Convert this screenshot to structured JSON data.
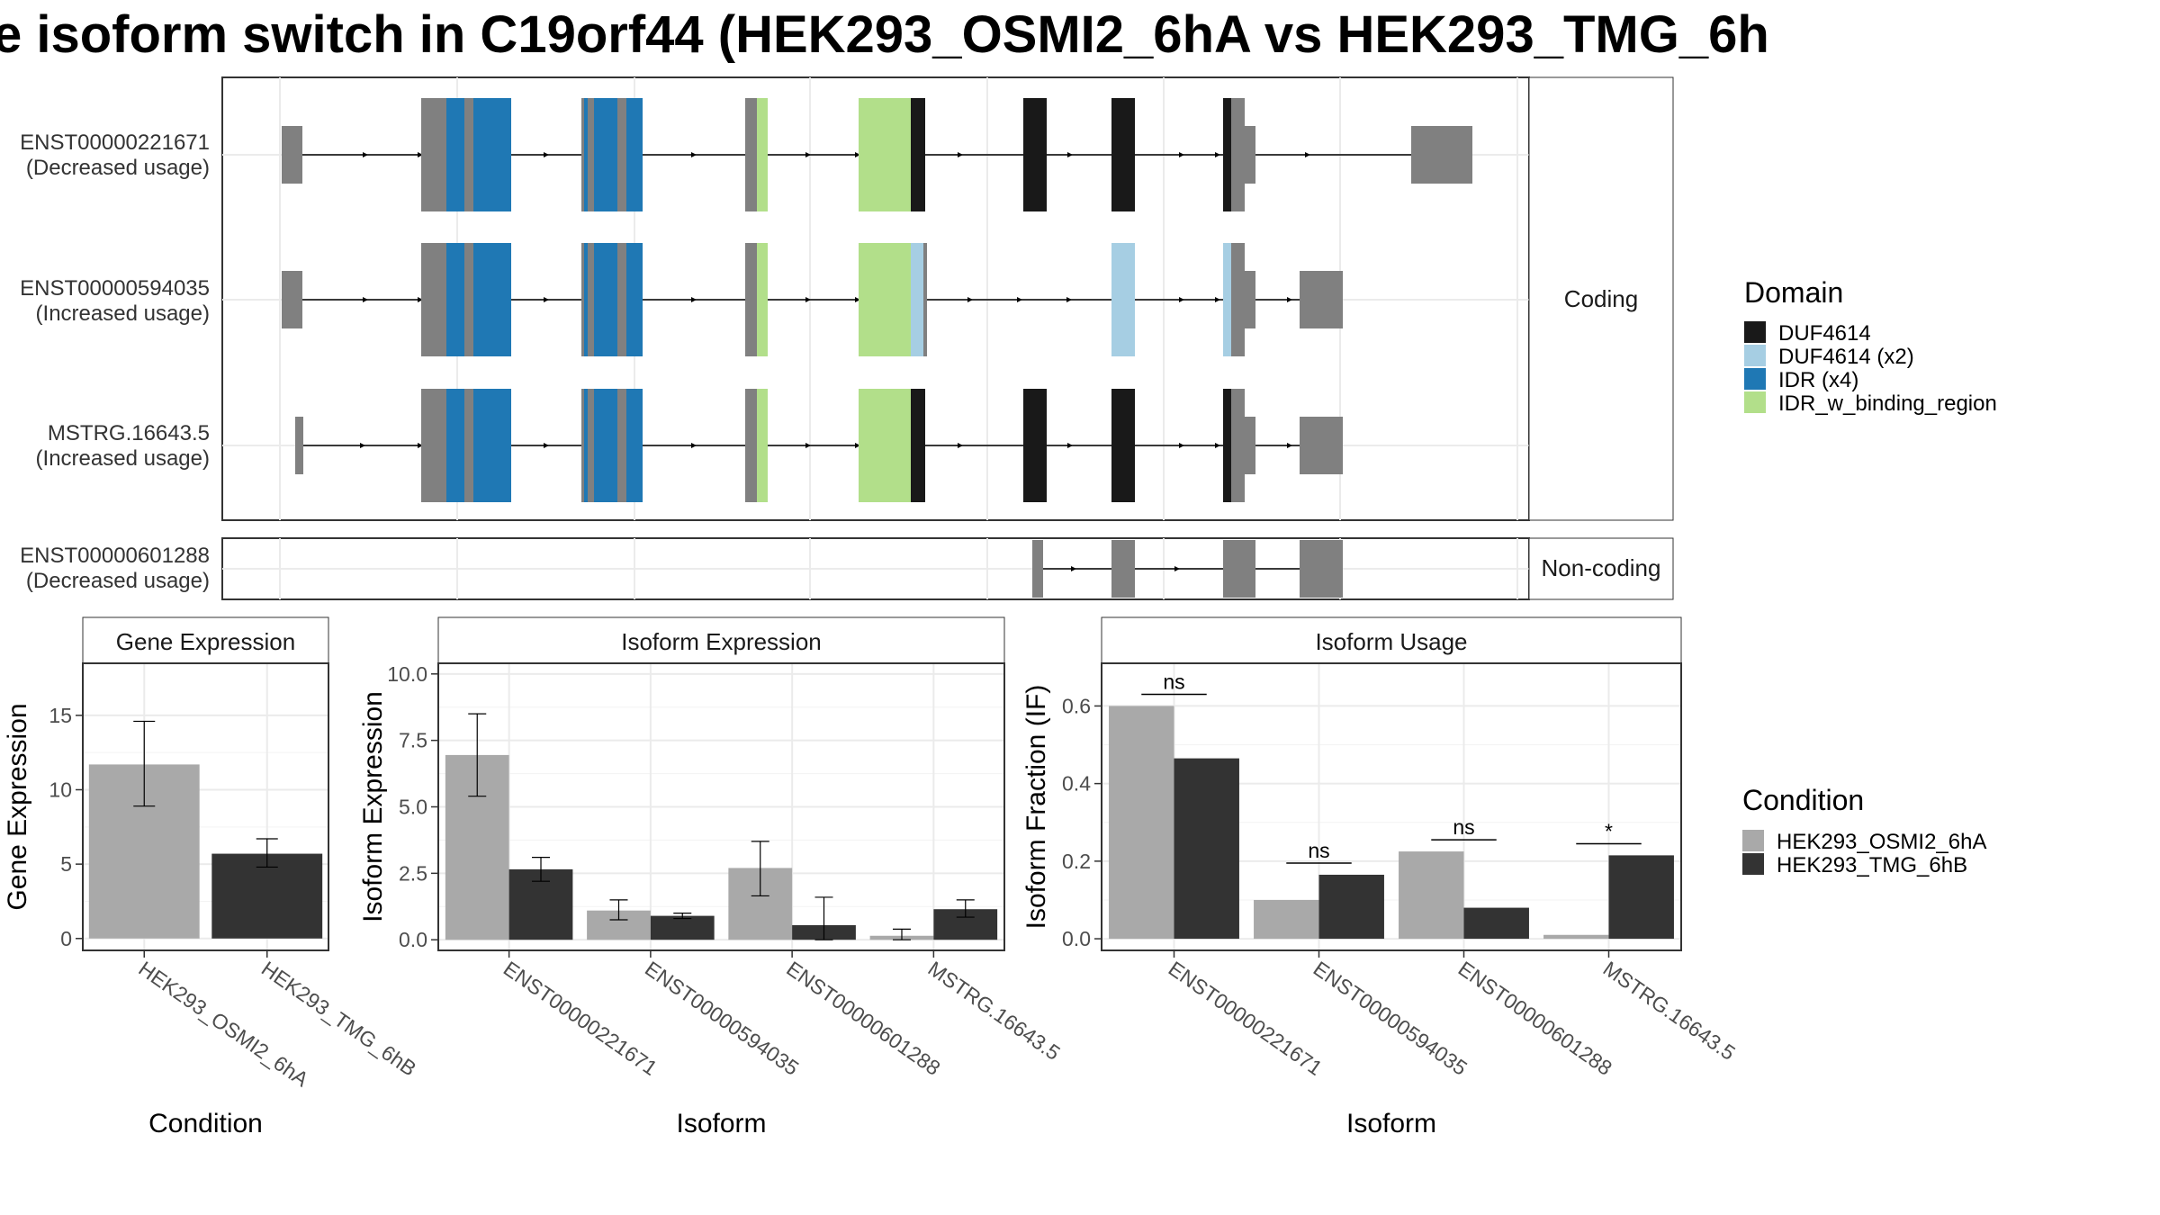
{
  "title": "e isoform switch in C19orf44 (HEK293_OSMI2_6hA vs HEK293_TMG_6h",
  "colors": {
    "exon_gray": "#808080",
    "DUF4614": "#191919",
    "DUF4614_x2": "#a6cee3",
    "IDR_x4": "#1f78b4",
    "IDR_w_binding_region": "#b2df8a",
    "cond_a": "#a9a9a9",
    "cond_b": "#333333"
  },
  "transcript_panel": {
    "coding_strip": "Coding",
    "noncoding_strip": "Non-coding",
    "coding_isoforms": [
      {
        "id": "ENST00000221671",
        "usage": "(Decreased usage)"
      },
      {
        "id": "ENST00000594035",
        "usage": "(Increased usage)"
      },
      {
        "id": "MSTRG.16643.5",
        "usage": "(Increased usage)"
      }
    ],
    "noncoding_isoforms": [
      {
        "id": "ENST00000601288",
        "usage": "(Decreased usage)"
      }
    ]
  },
  "domain_legend": {
    "title": "Domain",
    "items": [
      {
        "label": "DUF4614",
        "color": "#191919"
      },
      {
        "label": "DUF4614 (x2)",
        "color": "#a6cee3"
      },
      {
        "label": "IDR (x4)",
        "color": "#1f78b4"
      },
      {
        "label": "IDR_w_binding_region",
        "color": "#b2df8a"
      }
    ]
  },
  "condition_legend": {
    "title": "Condition",
    "items": [
      {
        "label": "HEK293_OSMI2_6hA",
        "color": "#a9a9a9"
      },
      {
        "label": "HEK293_TMG_6hB",
        "color": "#333333"
      }
    ]
  },
  "chart_data": [
    {
      "type": "bar",
      "title": "Gene Expression",
      "xlabel": "Condition",
      "ylabel": "Gene Expression",
      "categories": [
        "HEK293_OSMI2_6hA",
        "HEK293_TMG_6hB"
      ],
      "values": [
        11.7,
        5.7
      ],
      "error_low": [
        8.9,
        4.8
      ],
      "error_high": [
        14.6,
        6.7
      ],
      "colors": [
        "#a9a9a9",
        "#333333"
      ],
      "ylim": [
        -0.8,
        18.5
      ],
      "yticks": [
        0,
        5,
        10,
        15
      ],
      "ytick_labels": [
        "0",
        "5",
        "10",
        "15"
      ]
    },
    {
      "type": "bar",
      "title": "Isoform Expression",
      "xlabel": "Isoform",
      "ylabel": "Isoform Expression",
      "categories": [
        "ENST00000221671",
        "ENST00000594035",
        "ENST00000601288",
        "MSTRG.16643.5"
      ],
      "ylim": [
        -0.4,
        10.4
      ],
      "yticks": [
        0,
        2.5,
        5,
        7.5,
        10
      ],
      "ytick_labels": [
        "0.0",
        "2.5",
        "5.0",
        "7.5",
        "10.0"
      ],
      "series": [
        {
          "name": "HEK293_OSMI2_6hA",
          "color": "#a9a9a9",
          "values": [
            6.95,
            1.1,
            2.7,
            0.15
          ],
          "error_low": [
            5.4,
            0.75,
            1.65,
            0.0
          ],
          "error_high": [
            8.5,
            1.5,
            3.7,
            0.4
          ]
        },
        {
          "name": "HEK293_TMG_6hB",
          "color": "#333333",
          "values": [
            2.65,
            0.9,
            0.55,
            1.15
          ],
          "error_low": [
            2.2,
            0.8,
            0.0,
            0.85
          ],
          "error_high": [
            3.1,
            1.0,
            1.6,
            1.5
          ]
        }
      ]
    },
    {
      "type": "bar",
      "title": "Isoform Usage",
      "xlabel": "Isoform",
      "ylabel": "Isoform Fraction (IF)",
      "categories": [
        "ENST00000221671",
        "ENST00000594035",
        "ENST00000601288",
        "MSTRG.16643.5"
      ],
      "ylim": [
        -0.03,
        0.71
      ],
      "yticks": [
        0,
        0.2,
        0.4,
        0.6
      ],
      "ytick_labels": [
        "0.0",
        "0.2",
        "0.4",
        "0.6"
      ],
      "series": [
        {
          "name": "HEK293_OSMI2_6hA",
          "color": "#a9a9a9",
          "values": [
            0.6,
            0.1,
            0.225,
            0.01
          ]
        },
        {
          "name": "HEK293_TMG_6hB",
          "color": "#333333",
          "values": [
            0.465,
            0.165,
            0.08,
            0.215
          ]
        }
      ],
      "significance": [
        "ns",
        "ns",
        "ns",
        "*"
      ],
      "sig_y": [
        0.63,
        0.195,
        0.255,
        0.245
      ]
    }
  ]
}
